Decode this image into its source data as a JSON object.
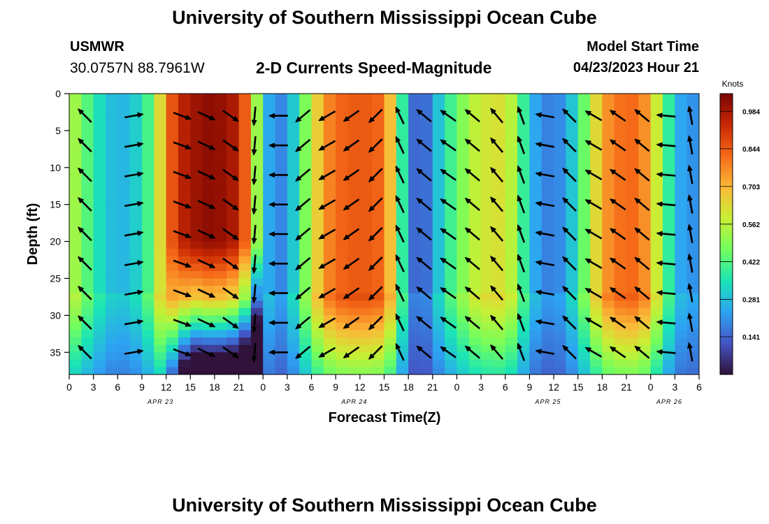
{
  "header": {
    "title": "University of Southern Mississippi Ocean Cube",
    "station": "USMWR",
    "coords": "30.0757N  88.7961W",
    "subtitle": "2-D Currents Speed-Magnitude",
    "model_start_label": "Model Start Time",
    "model_start_value": "04/23/2023 Hour 21"
  },
  "footer": {
    "title": "University of Southern Mississippi Ocean Cube"
  },
  "chart_data": {
    "type": "heatmap",
    "title": "2-D Currents Speed-Magnitude",
    "xlabel": "Forecast Time(Z)",
    "ylabel": "Depth (ft)",
    "x_ticks": [
      "0",
      "3",
      "6",
      "9",
      "12",
      "15",
      "18",
      "21",
      "0",
      "3",
      "6",
      "9",
      "12",
      "15",
      "18",
      "21",
      "0",
      "3",
      "6",
      "9",
      "12",
      "15",
      "18",
      "21",
      "0",
      "3",
      "6"
    ],
    "x_hours": [
      0,
      78
    ],
    "date_labels": [
      {
        "label": "APR 23",
        "hour": 12
      },
      {
        "label": "APR 24",
        "hour": 36
      },
      {
        "label": "APR 25",
        "hour": 60
      },
      {
        "label": "APR 26",
        "hour": 75
      }
    ],
    "y_ticks": [
      0,
      5,
      10,
      15,
      20,
      25,
      30,
      35
    ],
    "ylim": [
      0,
      38
    ],
    "colorbar": {
      "label": "Knots",
      "ticks": [
        "0.984",
        "0.844",
        "0.703",
        "0.562",
        "0.422",
        "0.281",
        "0.141"
      ],
      "range": [
        0,
        1.05
      ],
      "colors": [
        "#30123b",
        "#4454c4",
        "#2da3f3",
        "#1ae4b6",
        "#72fe5e",
        "#c8ef34",
        "#fbb938",
        "#f56918",
        "#c92903",
        "#7a0403"
      ]
    },
    "speed_profile": [
      {
        "hour": 0,
        "v": 0.58
      },
      {
        "hour": 1.5,
        "v": 0.47
      },
      {
        "hour": 3,
        "v": 0.38
      },
      {
        "hour": 4.5,
        "v": 0.3
      },
      {
        "hour": 6,
        "v": 0.26
      },
      {
        "hour": 7.5,
        "v": 0.28
      },
      {
        "hour": 9,
        "v": 0.34
      },
      {
        "hour": 10.5,
        "v": 0.48
      },
      {
        "hour": 12,
        "v": 0.78
      },
      {
        "hour": 13.5,
        "v": 0.93
      },
      {
        "hour": 15,
        "v": 0.99
      },
      {
        "hour": 18,
        "v": 1.03
      },
      {
        "hour": 21,
        "v": 0.96
      },
      {
        "hour": 22.5,
        "v": 0.72
      },
      {
        "hour": 24,
        "v": 0.32
      },
      {
        "hour": 25.5,
        "v": 0.17
      },
      {
        "hour": 27,
        "v": 0.22
      },
      {
        "hour": 28.5,
        "v": 0.38
      },
      {
        "hour": 30,
        "v": 0.58
      },
      {
        "hour": 31.5,
        "v": 0.74
      },
      {
        "hour": 33,
        "v": 0.82
      },
      {
        "hour": 36,
        "v": 0.85
      },
      {
        "hour": 39,
        "v": 0.82
      },
      {
        "hour": 40.5,
        "v": 0.56
      },
      {
        "hour": 42,
        "v": 0.2
      },
      {
        "hour": 43.5,
        "v": 0.1
      },
      {
        "hour": 45,
        "v": 0.22
      },
      {
        "hour": 46.5,
        "v": 0.36
      },
      {
        "hour": 48,
        "v": 0.44
      },
      {
        "hour": 49.5,
        "v": 0.54
      },
      {
        "hour": 51,
        "v": 0.6
      },
      {
        "hour": 54,
        "v": 0.62
      },
      {
        "hour": 55.5,
        "v": 0.5
      },
      {
        "hour": 57,
        "v": 0.28
      },
      {
        "hour": 58.5,
        "v": 0.2
      },
      {
        "hour": 60,
        "v": 0.17
      },
      {
        "hour": 61.5,
        "v": 0.23
      },
      {
        "hour": 63,
        "v": 0.36
      },
      {
        "hour": 64.5,
        "v": 0.55
      },
      {
        "hour": 66,
        "v": 0.72
      },
      {
        "hour": 67.5,
        "v": 0.8
      },
      {
        "hour": 70.5,
        "v": 0.82
      },
      {
        "hour": 72,
        "v": 0.7
      },
      {
        "hour": 73.5,
        "v": 0.48
      },
      {
        "hour": 75,
        "v": 0.28
      },
      {
        "hour": 76.5,
        "v": 0.2
      },
      {
        "hour": 78,
        "v": 0.22
      }
    ],
    "arrow_hours": [
      3,
      9,
      15,
      18,
      21,
      24,
      27,
      30,
      33,
      36,
      39,
      42,
      45,
      48,
      51,
      54,
      57,
      60,
      63,
      66,
      69,
      72,
      75,
      78
    ],
    "arrow_depths": [
      3,
      7,
      11,
      15,
      19,
      23,
      27,
      31,
      35
    ],
    "arrows": [
      {
        "hour": 3,
        "angle": 135
      },
      {
        "hour": 9,
        "angle": 10
      },
      {
        "hour": 15,
        "angle": -20
      },
      {
        "hour": 18,
        "angle": -25
      },
      {
        "hour": 21,
        "angle": -35
      },
      {
        "hour": 24,
        "angle": -95
      },
      {
        "hour": 27,
        "angle": 180
      },
      {
        "hour": 30,
        "angle": -140
      },
      {
        "hour": 33,
        "angle": -150
      },
      {
        "hour": 36,
        "angle": -145
      },
      {
        "hour": 39,
        "angle": -135
      },
      {
        "hour": 42,
        "angle": 115
      },
      {
        "hour": 45,
        "angle": 140
      },
      {
        "hour": 48,
        "angle": 145
      },
      {
        "hour": 51,
        "angle": 140
      },
      {
        "hour": 54,
        "angle": 130
      },
      {
        "hour": 57,
        "angle": 110
      },
      {
        "hour": 60,
        "angle": 170
      },
      {
        "hour": 63,
        "angle": 135
      },
      {
        "hour": 66,
        "angle": 150
      },
      {
        "hour": 69,
        "angle": 145
      },
      {
        "hour": 72,
        "angle": 140
      },
      {
        "hour": 75,
        "angle": 175
      },
      {
        "hour": 78,
        "angle": 100
      }
    ]
  }
}
